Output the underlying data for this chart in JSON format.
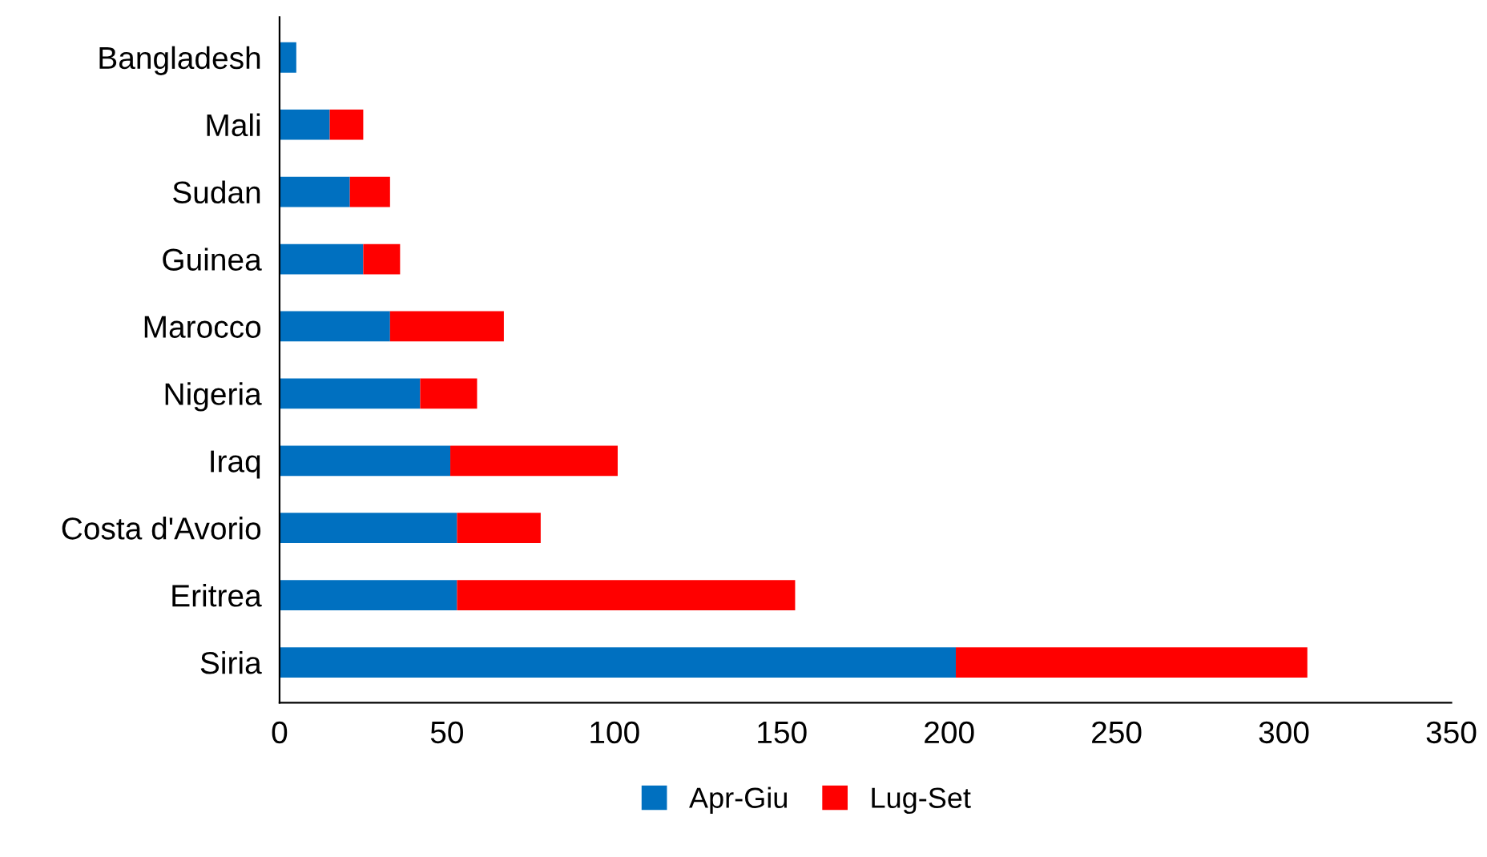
{
  "chart_data": {
    "type": "bar",
    "orientation": "horizontal",
    "stacked": true,
    "categories": [
      "Bangladesh",
      "Mali",
      "Sudan",
      "Guinea",
      "Marocco",
      "Nigeria",
      "Iraq",
      "Costa d'Avorio",
      "Eritrea",
      "Siria"
    ],
    "series": [
      {
        "name": "Apr-Giu",
        "color": "#0070c0",
        "values": [
          5,
          15,
          21,
          25,
          33,
          42,
          51,
          53,
          53,
          202
        ]
      },
      {
        "name": "Lug-Set",
        "color": "#ff0000",
        "values": [
          null,
          10,
          12,
          11,
          34,
          17,
          50,
          25,
          101,
          105
        ]
      }
    ],
    "xlim": [
      0,
      350
    ],
    "xticks": [
      0,
      50,
      100,
      150,
      200,
      250,
      300,
      350
    ],
    "grid": false,
    "legend": "bottom"
  }
}
